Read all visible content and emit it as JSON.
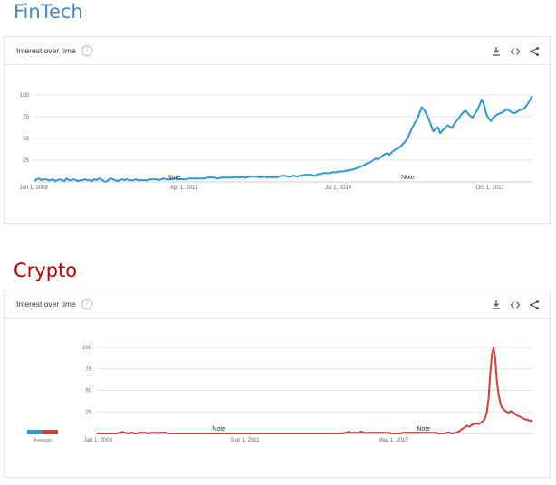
{
  "titles": {
    "fintech": "FinTech",
    "crypto": "Crypto"
  },
  "colors": {
    "fintech_title": "#4a86c6",
    "crypto_title": "#c00000",
    "fintech_line": "#2d98d6",
    "crypto_line": "#d93b36",
    "grid": "#e5e5e5"
  },
  "cards": {
    "header_label": "Interest over time",
    "help_icon": "help-circle-icon",
    "download_icon": "download-icon",
    "embed_icon": "embed-code-icon",
    "share_icon": "share-icon"
  },
  "chart_data": [
    {
      "type": "line",
      "title": "Interest over time",
      "ylim": [
        0,
        100
      ],
      "yticks": [
        25,
        50,
        75,
        100
      ],
      "xtick_labels": [
        "Jan 1, 2008",
        "Apr 1, 2011",
        "Jul 1, 2014",
        "Oct 1, 2017"
      ],
      "x_range_months": [
        "2008-01",
        "2018-09"
      ],
      "grid": true,
      "notes": [
        "Note",
        "Note"
      ],
      "series": [
        {
          "name": "",
          "values": [
            1,
            3,
            4,
            2,
            3,
            3,
            2,
            2,
            3,
            1,
            2,
            3,
            2,
            1,
            4,
            2,
            2,
            3,
            2,
            1,
            2,
            2,
            3,
            2,
            2,
            1,
            3,
            2,
            4,
            3,
            1,
            0,
            2,
            4,
            3,
            2,
            1,
            2,
            3,
            2,
            3,
            2,
            2,
            2,
            3,
            2,
            2,
            2,
            2,
            2,
            3,
            3,
            3,
            3,
            2,
            3,
            4,
            3,
            3,
            3,
            3,
            4,
            3,
            3,
            3,
            3,
            3,
            4,
            4,
            4,
            4,
            4,
            4,
            4,
            4,
            5,
            5,
            5,
            5,
            4,
            4,
            5,
            5,
            5,
            5,
            5,
            5,
            6,
            5,
            5,
            6,
            5,
            5,
            6,
            6,
            6,
            6,
            6,
            5,
            6,
            6,
            5,
            6,
            5,
            6,
            5,
            6,
            7,
            7,
            7,
            6,
            6,
            7,
            7,
            6,
            7,
            7,
            8,
            8,
            8,
            8,
            7,
            7,
            9,
            9,
            10,
            10,
            10,
            10,
            11,
            11,
            11,
            12,
            12,
            12,
            13,
            13,
            14,
            14,
            15,
            16,
            17,
            18,
            19,
            21,
            22,
            23,
            25,
            27,
            26,
            28,
            30,
            32,
            33,
            31,
            34,
            36,
            38,
            39,
            41,
            44,
            47,
            51,
            57,
            63,
            68,
            72,
            79,
            86,
            83,
            78,
            73,
            65,
            58,
            61,
            63,
            56,
            59,
            62,
            65,
            64,
            62,
            66,
            70,
            73,
            77,
            80,
            82,
            79,
            76,
            74,
            78,
            82,
            88,
            95,
            89,
            78,
            73,
            70,
            74,
            76,
            78,
            79,
            80,
            82,
            84,
            82,
            80,
            79,
            80,
            82,
            83,
            84,
            86,
            90,
            95,
            99
          ]
        }
      ]
    },
    {
      "type": "line",
      "title": "Interest over time",
      "ylim": [
        0,
        100
      ],
      "yticks": [
        25,
        50,
        75,
        100
      ],
      "xtick_labels": [
        "Jan 1, 2008",
        "Sep 1, 2011",
        "May 1, 2015"
      ],
      "x_range_months": [
        "2008-01",
        "2018-09"
      ],
      "grid": true,
      "notes": [
        "Note",
        "Note"
      ],
      "average_label": "Average",
      "series": [
        {
          "name": "",
          "values": [
            0,
            0,
            0,
            0,
            0,
            0,
            0,
            0,
            0,
            0,
            0,
            0,
            0,
            1,
            1,
            2,
            1,
            1,
            0,
            0,
            1,
            1,
            0,
            0,
            0,
            1,
            1,
            1,
            1,
            1,
            0,
            0,
            1,
            1,
            1,
            1,
            0,
            1,
            1,
            1,
            1,
            1,
            0,
            0,
            0,
            0,
            0,
            0,
            0,
            0,
            0,
            0,
            0,
            0,
            0,
            0,
            0,
            0,
            0,
            0,
            0,
            0,
            0,
            0,
            0,
            0,
            0,
            0,
            0,
            0,
            0,
            0,
            0,
            0,
            0,
            0,
            0,
            0,
            0,
            0,
            0,
            0,
            0,
            0,
            0,
            0,
            0,
            0,
            0,
            0,
            0,
            0,
            0,
            0,
            0,
            0,
            0,
            0,
            0,
            0,
            0,
            0,
            0,
            0,
            0,
            0,
            0,
            0,
            0,
            0,
            0,
            0,
            0,
            0,
            0,
            0,
            0,
            0,
            0,
            0,
            0,
            0,
            0,
            0,
            0,
            0,
            0,
            0,
            0,
            0,
            0,
            0,
            0,
            0,
            0,
            0,
            0,
            0,
            0,
            0,
            0,
            0,
            0,
            0,
            0,
            0,
            0,
            1,
            1,
            2,
            1,
            1,
            1,
            1,
            1,
            1,
            2,
            2,
            1,
            1,
            1,
            1,
            1,
            1,
            1,
            1,
            1,
            1,
            1,
            1,
            1,
            1,
            1,
            1,
            0,
            0,
            0,
            0,
            0,
            0,
            0,
            1,
            1,
            1,
            1,
            1,
            1,
            1,
            1,
            1,
            1,
            1,
            1,
            1,
            1,
            1,
            1,
            1,
            1,
            1,
            1,
            1,
            0,
            0,
            0,
            0,
            0,
            1,
            1,
            1,
            0,
            0,
            1,
            1,
            2,
            3,
            5,
            6,
            7,
            9,
            8,
            8,
            10,
            11,
            11,
            12,
            11,
            12,
            13,
            15,
            18,
            25,
            40,
            70,
            92,
            100,
            86,
            60,
            45,
            35,
            30,
            28,
            26,
            25,
            24,
            26,
            25,
            24,
            22,
            21,
            20,
            19,
            18,
            17,
            16,
            16,
            15,
            15,
            14
          ]
        }
      ]
    }
  ]
}
